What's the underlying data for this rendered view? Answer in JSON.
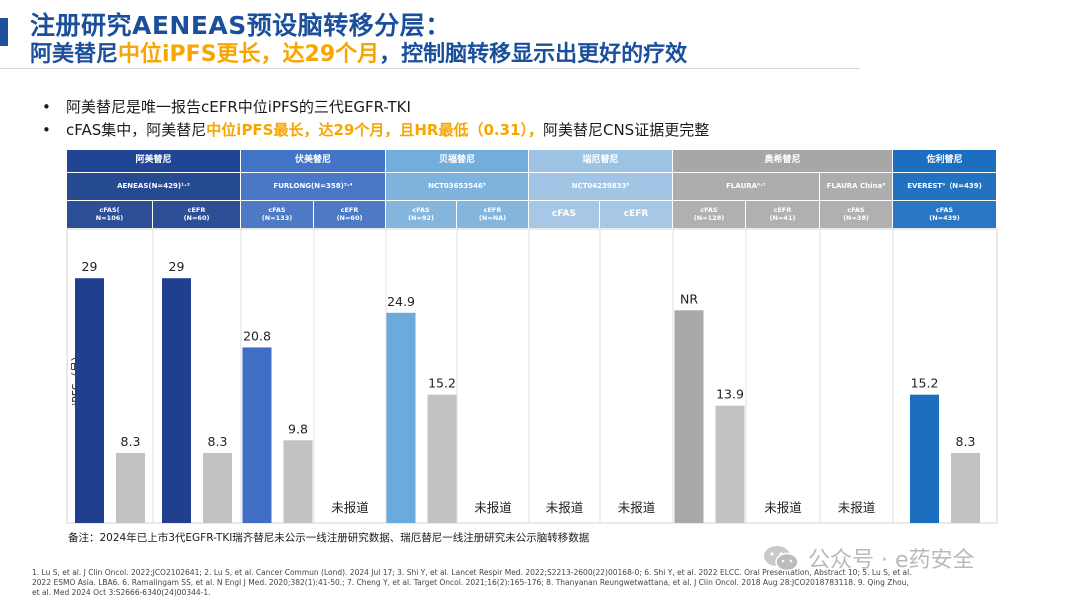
{
  "title": {
    "line1": "注册研究AENEAS预设脑转移分层：",
    "line2_pre": "阿美替尼",
    "line2_hl": "中位iPFS更长，达29个月",
    "line2_post": "，控制脑转移显示出更好的疗效"
  },
  "bullets": [
    {
      "pre": "阿美替尼是唯一报告cEFR中位iPFS的三代EGFR-TKI",
      "hl": "",
      "post": ""
    },
    {
      "pre": "cFAS集中，阿美替尼",
      "hl": "中位iPFS最长，达29个月，且HR最低（0.31），",
      "post": "阿美替尼CNS证据更完整"
    }
  ],
  "colors": {
    "title_blue": "#1a4f9c",
    "highlight": "#f7a600",
    "almonertinib_dark": "#1f4594",
    "furmonertinib": "#4274c8",
    "befotertinib": "#72aedb",
    "rezivertinib": "#9cc3e4",
    "osimertinib": "#a7a7a7",
    "lazertinib": "#1c6fc0",
    "efr_bar": "#c2c2c2"
  },
  "header": {
    "drugs": [
      {
        "name": "阿美替尼",
        "color": "#1f4594"
      },
      {
        "name": "伏美替尼",
        "color": "#4274c8"
      },
      {
        "name": "贝福替尼",
        "color": "#72aedb"
      },
      {
        "name": "瑞厄替尼",
        "color": "#9cc3e4"
      },
      {
        "name": "奥希替尼",
        "color": "#a7a7a7"
      },
      {
        "name": "佐利替尼",
        "color": "#1c6fc0"
      }
    ],
    "studies": [
      {
        "name": "AENEAS(N=429)¹·²"
      },
      {
        "name": "FURLONG(N=358)³·⁴"
      },
      {
        "name": "NCT03653546⁵"
      },
      {
        "name": "NCT04239833⁶"
      },
      {
        "name": "FLAURA⁶·⁷"
      },
      {
        "name": "FLAURA China⁸"
      },
      {
        "name": "EVEREST⁹（N=439)"
      }
    ],
    "subgroups": [
      {
        "label": "cFAS(\nN=106)"
      },
      {
        "label": "cEFR\n(N=60)"
      },
      {
        "label": "cFAS\n(N=133)"
      },
      {
        "label": "cEFR\n(N=60)"
      },
      {
        "label": "cFAS\n(N=92)"
      },
      {
        "label": "cEFR\n(N=NA)"
      },
      {
        "label": "cFAS"
      },
      {
        "label": "cEFR"
      },
      {
        "label": "cFAS\n(N=128)"
      },
      {
        "label": "cEFR\n(N=41)"
      },
      {
        "label": "cFAS\n(N=38)"
      },
      {
        "label": "cFAS\n(N=439)"
      }
    ]
  },
  "chart_data": {
    "type": "bar",
    "ylabel": "iPFS（月）",
    "ylim": [
      0,
      34
    ],
    "grid": false,
    "legend": "none",
    "groups": [
      {
        "drug": "阿美替尼",
        "subgroup": "cFAS",
        "bars": [
          {
            "value": 29,
            "label": "29"
          },
          {
            "value": 8.3,
            "label": "8.3"
          }
        ]
      },
      {
        "drug": "阿美替尼",
        "subgroup": "cEFR",
        "bars": [
          {
            "value": 29,
            "label": "29"
          },
          {
            "value": 8.3,
            "label": "8.3"
          }
        ]
      },
      {
        "drug": "伏美替尼",
        "subgroup": "cFAS",
        "bars": [
          {
            "value": 20.8,
            "label": "20.8"
          },
          {
            "value": 9.8,
            "label": "9.8"
          }
        ]
      },
      {
        "drug": "伏美替尼",
        "subgroup": "cEFR",
        "bars": [],
        "note": "未报道"
      },
      {
        "drug": "贝福替尼",
        "subgroup": "cFAS",
        "bars": [
          {
            "value": 24.9,
            "label": "24.9"
          },
          {
            "value": 15.2,
            "label": "15.2"
          }
        ]
      },
      {
        "drug": "贝福替尼",
        "subgroup": "cEFR",
        "bars": [],
        "note": "未报道"
      },
      {
        "drug": "瑞厄替尼",
        "subgroup": "cFAS",
        "bars": [],
        "note": "未报道"
      },
      {
        "drug": "瑞厄替尼",
        "subgroup": "cEFR",
        "bars": [],
        "note": "未报道"
      },
      {
        "drug": "奥希替尼",
        "subgroup": "cFAS",
        "bars": [
          {
            "value": 25.2,
            "label": "NR"
          },
          {
            "value": 13.9,
            "label": "13.9"
          }
        ]
      },
      {
        "drug": "奥希替尼",
        "subgroup": "cEFR",
        "bars": [],
        "note": "未报道"
      },
      {
        "drug": "奥希替尼",
        "subgroup": "cFAS China",
        "bars": [],
        "note": "未报道"
      },
      {
        "drug": "佐利替尼",
        "subgroup": "cFAS",
        "bars": [
          {
            "value": 15.2,
            "label": "15.2"
          },
          {
            "value": 8.3,
            "label": "8.3"
          }
        ]
      }
    ]
  },
  "remark": "备注：2024年已上市3代EGFR-TKI瑞齐替尼未公示一线注册研究数据、瑞厄替尼一线注册研究未公示脑转移数据",
  "references": "1. Lu S, et al. J Clin Oncol. 2022;JCO2102641; 2. Lu S, et al. Cancer Commun (Lond). 2024 Jul 17; 3. Shi Y, et al. Lancet Respir Med. 2022;S2213-2600(22)00168-0; 6. Shi Y, et al. 2022 ELCC. Oral Presentation, Abstract 10; 5. Lu S, et al. 2022 ESMO Asia. LBA6. 6. Ramalingam SS, et al. N Engl J Med. 2020;382(1):41-50.; 7. Cheng Y, et al. Target Oncol. 2021;16(2):165-176; 8. Thanyanan Reungwetwattana, et al. J Clin Oncol. 2018 Aug 28:JCO2018783118. 9. Qing Zhou, et al. Med 2024 Oct 3:S2666-6340(24)00344-1.",
  "watermark": "公众号 · e药安全"
}
